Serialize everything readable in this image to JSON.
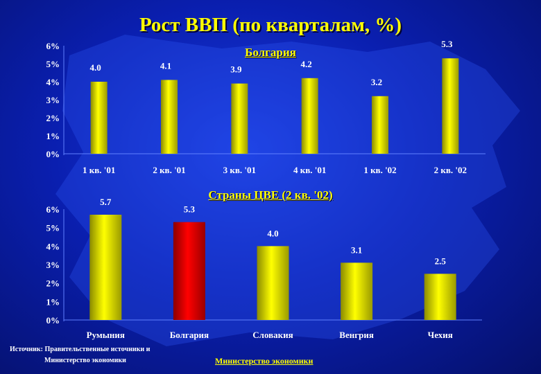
{
  "slide": {
    "title": "Рост ВВП (по кварталам, %)",
    "source_line1": "Источник: Правительственные источники и",
    "source_line2": "Министерство экономики",
    "footer": "Министерство экономики"
  },
  "colors": {
    "background": "#0a1fb0",
    "title": "#ffff00",
    "bar_yellow": "#ffff00",
    "bar_highlight": "#ff0000"
  },
  "chart_data": [
    {
      "type": "bar",
      "title": "Болгария",
      "categories": [
        "1 кв. '01",
        "2 кв. '01",
        "3 кв. '01",
        "4 кв. '01",
        "1 кв. '02",
        "2 кв. '02"
      ],
      "values": [
        4.0,
        4.1,
        3.9,
        4.2,
        3.2,
        5.3
      ],
      "data_labels": [
        "4.0",
        "4.1",
        "3.9",
        "4.2",
        "3.2",
        "5.3"
      ],
      "ytick_labels": [
        "0%",
        "1%",
        "2%",
        "3%",
        "4%",
        "5%",
        "6%"
      ],
      "ylim": [
        0,
        6
      ],
      "bar_colors": [
        "#ffff00",
        "#ffff00",
        "#ffff00",
        "#ffff00",
        "#ffff00",
        "#ffff00"
      ],
      "grid": false
    },
    {
      "type": "bar",
      "title": "Страны ЦВЕ (2 кв. '02)",
      "categories": [
        "Румыния",
        "Болгария",
        "Словакия",
        "Венгрия",
        "Чехия"
      ],
      "values": [
        5.7,
        5.3,
        4.0,
        3.1,
        2.5
      ],
      "data_labels": [
        "5.7",
        "5.3",
        "4.0",
        "3.1",
        "2.5"
      ],
      "ytick_labels": [
        "0%",
        "1%",
        "2%",
        "3%",
        "4%",
        "5%",
        "6%"
      ],
      "ylim": [
        0,
        6
      ],
      "bar_colors": [
        "#ffff00",
        "#ff0000",
        "#ffff00",
        "#ffff00",
        "#ffff00"
      ],
      "grid": false
    }
  ]
}
